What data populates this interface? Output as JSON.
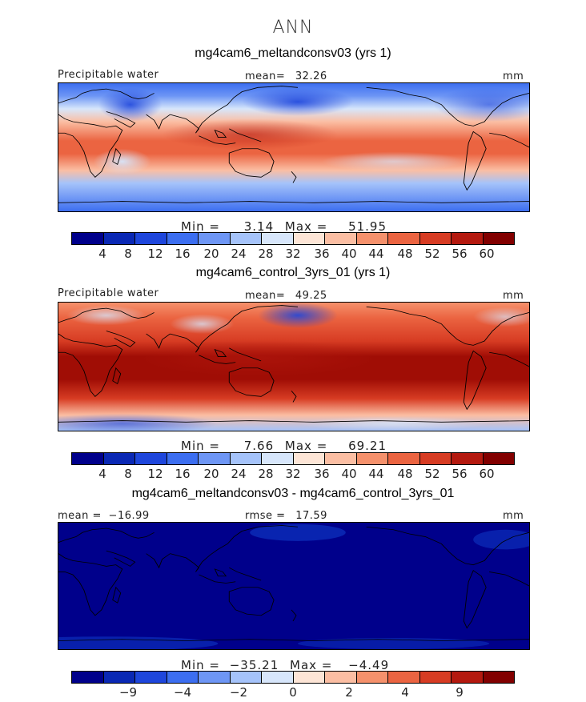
{
  "figure": {
    "season": "ANN",
    "units": "mm"
  },
  "panels": [
    {
      "case_title": "mg4cam6_meltandconsv03 (yrs 1)",
      "variable": "Precipitable water",
      "mean_label": "mean=",
      "mean_value": "32.26",
      "units": "mm",
      "min_label": "Min =",
      "min_value": "3.14",
      "max_label": "Max =",
      "max_value": "51.95"
    },
    {
      "case_title": "mg4cam6_control_3yrs_01 (yrs 1)",
      "variable": "Precipitable water",
      "mean_label": "mean=",
      "mean_value": "49.25",
      "units": "mm",
      "min_label": "Min =",
      "min_value": "7.66",
      "max_label": "Max =",
      "max_value": "69.21"
    },
    {
      "case_title": "mg4cam6_meltandconsv03 - mg4cam6_control_3yrs_01",
      "mean_label": "mean =",
      "mean_value": "−16.99",
      "rmse_label": "rmse =",
      "rmse_value": "17.59",
      "units": "mm",
      "min_label": "Min =",
      "min_value": "−35.21",
      "max_label": "Max =",
      "max_value": "−4.49"
    }
  ],
  "colorbar_abs": {
    "colors": [
      "#00008b",
      "#0a28b4",
      "#1e46dc",
      "#3c6ef0",
      "#6e96f5",
      "#a5c3fa",
      "#d7e6fb",
      "#fde5d6",
      "#fbbea3",
      "#f5916c",
      "#eb6441",
      "#d73c23",
      "#b4190f",
      "#820000"
    ],
    "ticks": [
      "4",
      "8",
      "12",
      "16",
      "20",
      "24",
      "28",
      "32",
      "36",
      "40",
      "44",
      "48",
      "52",
      "56",
      "60"
    ]
  },
  "colorbar_diff": {
    "colors": [
      "#00008b",
      "#0a28b4",
      "#1e46dc",
      "#3c6ef0",
      "#6e96f5",
      "#a5c3fa",
      "#d7e6fb",
      "#fde5d6",
      "#fbbea3",
      "#f5916c",
      "#eb6441",
      "#d73c23",
      "#b4190f",
      "#820000"
    ],
    "ticks": [
      "−9",
      "−4",
      "−2",
      "0",
      "2",
      "4",
      "9"
    ]
  },
  "chart_data": [
    {
      "type": "heatmap",
      "title": "mg4cam6_meltandconsv03 (yrs 1)",
      "variable": "Precipitable water",
      "units": "mm",
      "mean": 32.26,
      "min": 3.14,
      "max": 51.95,
      "contour_levels": [
        4,
        8,
        12,
        16,
        20,
        24,
        28,
        32,
        36,
        40,
        44,
        48,
        52,
        56,
        60
      ]
    },
    {
      "type": "heatmap",
      "title": "mg4cam6_control_3yrs_01 (yrs 1)",
      "variable": "Precipitable water",
      "units": "mm",
      "mean": 49.25,
      "min": 7.66,
      "max": 69.21,
      "contour_levels": [
        4,
        8,
        12,
        16,
        20,
        24,
        28,
        32,
        36,
        40,
        44,
        48,
        52,
        56,
        60
      ]
    },
    {
      "type": "heatmap",
      "title": "mg4cam6_meltandconsv03 - mg4cam6_control_3yrs_01",
      "units": "mm",
      "mean": -16.99,
      "rmse": 17.59,
      "min": -35.21,
      "max": -4.49,
      "contour_levels": [
        -9,
        -4,
        -2,
        0,
        2,
        4,
        9
      ]
    }
  ]
}
